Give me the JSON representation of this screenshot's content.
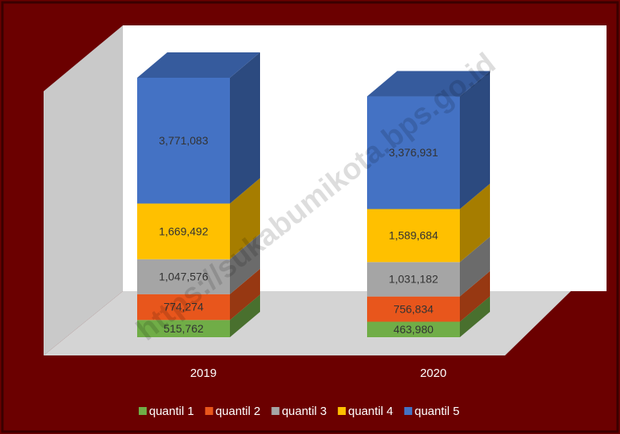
{
  "chart_data": {
    "type": "bar3d_stacked",
    "categories": [
      "2019",
      "2020"
    ],
    "series": [
      {
        "name": "quantil 1",
        "color": "#70ad47",
        "values": [
          515762,
          463980
        ],
        "value_labels": [
          "515,762",
          "463,980"
        ]
      },
      {
        "name": "quantil 2",
        "color": "#e8561c",
        "values": [
          774274,
          756834
        ],
        "value_labels": [
          "774,274",
          "756,834"
        ]
      },
      {
        "name": "quantil 3",
        "color": "#a5a5a5",
        "values": [
          1047576,
          1031182
        ],
        "value_labels": [
          "1,047,576",
          "1,031,182"
        ]
      },
      {
        "name": "quantil 4",
        "color": "#ffc000",
        "values": [
          1669492,
          1589684
        ],
        "value_labels": [
          "1,669,492",
          "1,589,684"
        ]
      },
      {
        "name": "quantil 5",
        "color": "#4472c4",
        "values": [
          3771083,
          3376931
        ],
        "value_labels": [
          "3,771,083",
          "3,376,931"
        ]
      }
    ],
    "legend": "bottom",
    "watermark": "https://sukabumikota.bps.go.id"
  }
}
